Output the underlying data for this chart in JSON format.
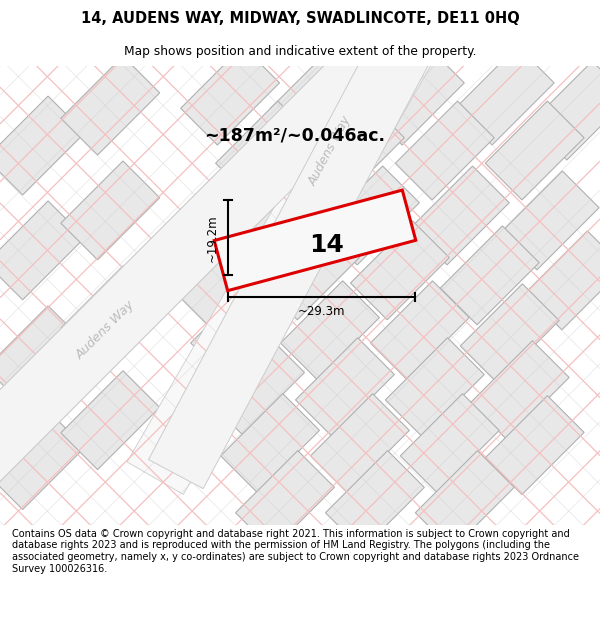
{
  "title_line1": "14, AUDENS WAY, MIDWAY, SWADLINCOTE, DE11 0HQ",
  "title_line2": "Map shows position and indicative extent of the property.",
  "area_text": "~187m²/~0.046ac.",
  "dim_width": "~29.3m",
  "dim_height": "~19.2m",
  "plot_label": "14",
  "footer_text": "Contains OS data © Crown copyright and database right 2021. This information is subject to Crown copyright and database rights 2023 and is reproduced with the permission of HM Land Registry. The polygons (including the associated geometry, namely x, y co-ordinates) are subject to Crown copyright and database rights 2023 Ordnance Survey 100026316.",
  "plot_edge": "#dd0000",
  "grid_pink": "#f5c0c0",
  "grid_gray": "#cccccc",
  "block_face": "#e8e8e8",
  "block_edge": "#b0b0b0",
  "road_face": "#f0f0f0",
  "street_label": "Audens Way",
  "street_color": "#bbbbbb",
  "map_bg": "#ffffff"
}
